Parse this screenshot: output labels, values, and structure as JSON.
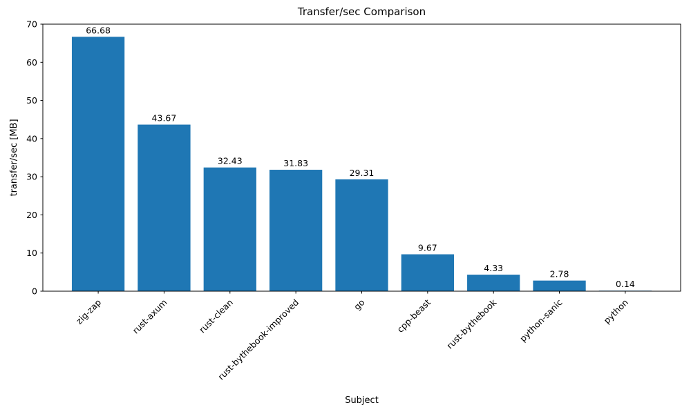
{
  "chart_data": {
    "type": "bar",
    "title": "Transfer/sec Comparison",
    "xlabel": "Subject",
    "ylabel": "transfer/sec [MB]",
    "categories": [
      "zig-zap",
      "rust-axum",
      "rust-clean",
      "rust-bythebook-improved",
      "go",
      "cpp-beast",
      "rust-bythebook",
      "python-sanic",
      "python"
    ],
    "values": [
      66.68,
      43.67,
      32.43,
      31.83,
      29.31,
      9.67,
      4.33,
      2.78,
      0.14
    ],
    "bar_value_labels": [
      "66.68",
      "43.67",
      "32.43",
      "31.83",
      "29.31",
      "9.67",
      "4.33",
      "2.78",
      "0.14"
    ],
    "yticks": [
      0,
      10,
      20,
      30,
      40,
      50,
      60,
      70
    ],
    "ylim": [
      0,
      70
    ],
    "bar_color": "#1f77b4",
    "grid": false,
    "legend_position": "none",
    "x_tick_rotation_deg": 45
  }
}
